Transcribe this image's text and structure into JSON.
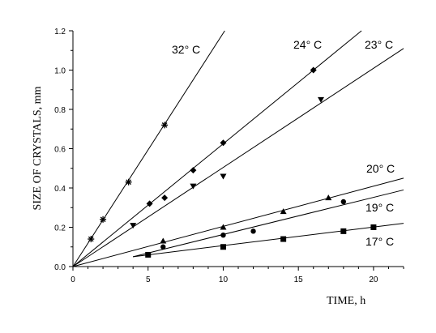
{
  "chart_data": {
    "type": "scatter",
    "title": "",
    "xlabel": "TIME, h",
    "ylabel": "SIZE OF CRYSTALS, mm",
    "xlim": [
      0,
      22
    ],
    "ylim": [
      0,
      1.2
    ],
    "xticks": [
      "0",
      "5",
      "10",
      "15",
      "20"
    ],
    "yticks": [
      "0.0",
      "0.2",
      "0.4",
      "0.6",
      "0.8",
      "1.0",
      "1.2"
    ],
    "grid": false,
    "series": [
      {
        "name": "32° C",
        "marker": "asterisk",
        "points": [
          [
            1.2,
            0.14
          ],
          [
            2.0,
            0.24
          ],
          [
            3.7,
            0.43
          ],
          [
            6.1,
            0.72
          ]
        ],
        "fit": [
          [
            0,
            0
          ],
          [
            10.1,
            1.2
          ]
        ]
      },
      {
        "name": "24° C",
        "marker": "diamond",
        "points": [
          [
            5.1,
            0.32
          ],
          [
            6.1,
            0.35
          ],
          [
            8.0,
            0.49
          ],
          [
            10.0,
            0.63
          ],
          [
            16.0,
            1.0
          ]
        ],
        "fit": [
          [
            0,
            0
          ],
          [
            19.2,
            1.2
          ]
        ]
      },
      {
        "name": "23° C",
        "marker": "triangle-down",
        "points": [
          [
            4.0,
            0.21
          ],
          [
            8.0,
            0.41
          ],
          [
            10.0,
            0.46
          ],
          [
            16.5,
            0.85
          ]
        ],
        "fit": [
          [
            0,
            0
          ],
          [
            22,
            1.11
          ]
        ]
      },
      {
        "name": "20° C",
        "marker": "triangle-up",
        "points": [
          [
            6.0,
            0.13
          ],
          [
            10.0,
            0.2
          ],
          [
            14.0,
            0.28
          ],
          [
            17.0,
            0.35
          ]
        ],
        "fit": [
          [
            0,
            0
          ],
          [
            22,
            0.45
          ]
        ]
      },
      {
        "name": "19° C",
        "marker": "circle",
        "points": [
          [
            6.0,
            0.1
          ],
          [
            10.0,
            0.16
          ],
          [
            12.0,
            0.18
          ],
          [
            18.0,
            0.33
          ]
        ],
        "fit": [
          [
            4.0,
            0.05
          ],
          [
            22,
            0.39
          ]
        ]
      },
      {
        "name": "17° C",
        "marker": "square",
        "points": [
          [
            5.0,
            0.06
          ],
          [
            10.0,
            0.1
          ],
          [
            14.0,
            0.14
          ],
          [
            18.0,
            0.18
          ],
          [
            20.0,
            0.2
          ]
        ],
        "fit": [
          [
            4.0,
            0.05
          ],
          [
            22,
            0.22
          ]
        ]
      }
    ]
  }
}
